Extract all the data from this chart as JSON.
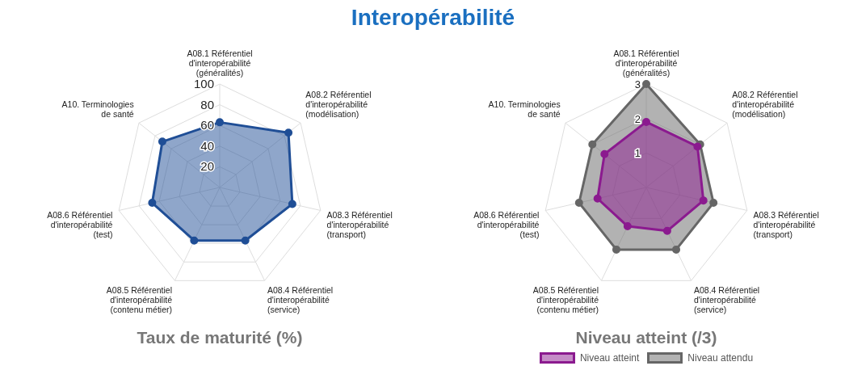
{
  "chart_data": [
    {
      "type": "radar",
      "title": "Taux de maturité (%)",
      "annotations": [
        "Interopérabilité"
      ],
      "categories": [
        "A08.1 Référentiel d'interopérabilité (généralités)",
        "A08.2 Référentiel d'interopérabilité (modélisation)",
        "A08.3 Référentiel d'interopérabilité (transport)",
        "A08.4 Référentiel d'interopérabilité (service)",
        "A08.5 Référentiel d'interopérabilité (contenu métier)",
        "A08.6 Référentiel d'interopérabilité (test)",
        "A10. Terminologies de santé"
      ],
      "series": [
        {
          "color": "#1f4e96",
          "values": [
            63,
            85,
            72,
            57,
            57,
            67,
            71
          ]
        }
      ],
      "ylim": [
        0,
        100
      ],
      "yticks": [
        20,
        40,
        60,
        80,
        100
      ],
      "grid": true,
      "marker": "circle"
    },
    {
      "type": "radar",
      "title": "Niveau atteint (/3)",
      "categories": [
        "A08.1 Référentiel d'interopérabilité (généralités)",
        "A08.2 Référentiel d'interopérabilité (modélisation)",
        "A08.3 Référentiel d'interopérabilité (transport)",
        "A08.4 Référentiel d'interopérabilité (service)",
        "A08.5 Référentiel d'interopérabilité (contenu métier)",
        "A08.6 Référentiel d'interopérabilité (test)",
        "A10. Terminologies de santé"
      ],
      "series": [
        {
          "name": "Niveau atteint",
          "color": "#8b1a8f",
          "values": [
            1.9,
            1.9,
            1.7,
            1.4,
            1.25,
            1.45,
            1.55
          ]
        },
        {
          "name": "Niveau attendu",
          "color": "#666666",
          "values": [
            3,
            2,
            2,
            2,
            2,
            2,
            2
          ]
        }
      ],
      "ylim": [
        0,
        3
      ],
      "yticks": [
        1,
        2,
        3
      ],
      "grid": true,
      "marker": "circle",
      "legend": "bottom"
    }
  ]
}
